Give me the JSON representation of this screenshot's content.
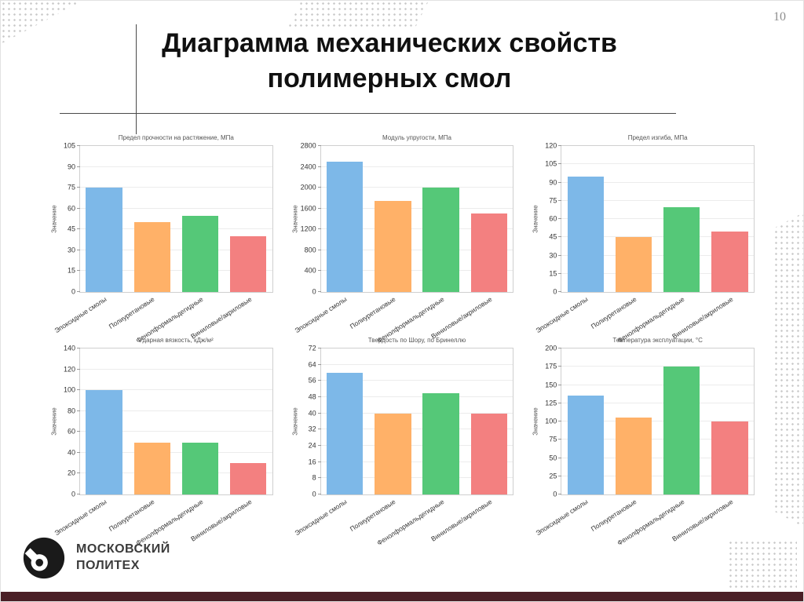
{
  "page_number": "10",
  "title": {
    "line1": "Диаграмма механических свойств",
    "line2": "полимерных смол"
  },
  "logo": {
    "line1": "МОСКОВСКИЙ",
    "line2": "ПОЛИТЕХ"
  },
  "colors": {
    "bar_palette": [
      "#7db8e8",
      "#ffb168",
      "#55c878",
      "#f38080"
    ],
    "bottom_bar": "#4a1f26",
    "dots": "#c9c9c9"
  },
  "chart_data": [
    {
      "type": "bar",
      "title": "Предел прочности на растяжение, МПа",
      "ylabel": "Значение",
      "categories": [
        "Эпоксидные смолы",
        "Полиуретановые",
        "Фенолформальдегидные",
        "Виниловые/акриловые"
      ],
      "values": [
        75,
        50,
        55,
        40
      ],
      "ylim": [
        0,
        105
      ],
      "ytick_step": 15,
      "grid": true,
      "legend": "none"
    },
    {
      "type": "bar",
      "title": "Модуль упругости, МПа",
      "ylabel": "Значение",
      "categories": [
        "Эпоксидные смолы",
        "Полиуретановые",
        "Фенолформальдегидные",
        "Виниловые/акриловые"
      ],
      "values": [
        2500,
        1750,
        2000,
        1500
      ],
      "ylim": [
        0,
        2800
      ],
      "ytick_step": 400,
      "grid": true,
      "legend": "none"
    },
    {
      "type": "bar",
      "title": "Предел изгиба, МПа",
      "ylabel": "Значение",
      "categories": [
        "Эпоксидные смолы",
        "Полиуретановые",
        "Фенолформальдегидные",
        "Виниловые/акриловые"
      ],
      "values": [
        95,
        45,
        70,
        50
      ],
      "ylim": [
        0,
        120
      ],
      "ytick_step": 15,
      "grid": true,
      "legend": "none"
    },
    {
      "type": "bar",
      "title": "Ударная вязкость, кДж/м²",
      "ylabel": "Значение",
      "categories": [
        "Эпоксидные смолы",
        "Полиуретановые",
        "Фенолформальдегидные",
        "Виниловые/акриловые"
      ],
      "values": [
        100,
        50,
        50,
        30
      ],
      "ylim": [
        0,
        140
      ],
      "ytick_step": 20,
      "grid": true,
      "legend": "none"
    },
    {
      "type": "bar",
      "title": "Твердость по Шору, по Бринеллю",
      "ylabel": "Значение",
      "categories": [
        "Эпоксидные смолы",
        "Полиуретановые",
        "Фенолформальдегидные",
        "Виниловые/акриловые"
      ],
      "values": [
        60,
        40,
        50,
        40
      ],
      "ylim": [
        0,
        72
      ],
      "ytick_step": 8,
      "grid": true,
      "legend": "none"
    },
    {
      "type": "bar",
      "title": "Температура эксплуатации, °С",
      "ylabel": "Значение",
      "categories": [
        "Эпоксидные смолы",
        "Полиуретановые",
        "Фенолформальдегидные",
        "Виниловые/акриловые"
      ],
      "values": [
        135,
        105,
        175,
        100
      ],
      "ylim": [
        0,
        200
      ],
      "ytick_step": 25,
      "grid": true,
      "legend": "none"
    }
  ]
}
